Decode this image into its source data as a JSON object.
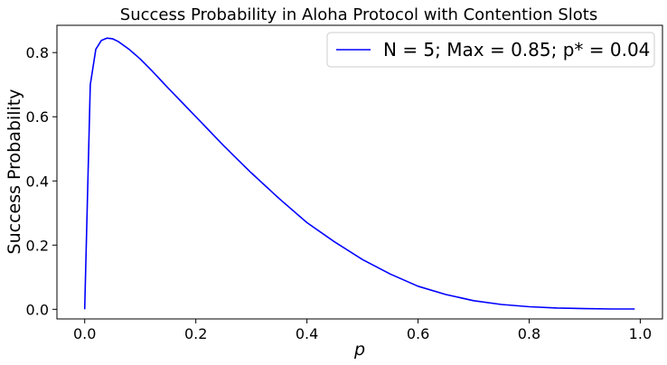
{
  "chart_data": {
    "type": "line",
    "title": "Success Probability in Aloha Protocol with Contention Slots",
    "xlabel": "p",
    "ylabel": "Success Probability",
    "xlim": [
      -0.05,
      1.04
    ],
    "ylim": [
      -0.03,
      0.885
    ],
    "xticks": [
      "0.0",
      "0.2",
      "0.4",
      "0.6",
      "0.8",
      "1.0"
    ],
    "yticks": [
      "0.0",
      "0.2",
      "0.4",
      "0.6",
      "0.8"
    ],
    "grid": false,
    "legend_position": "top-right",
    "series": [
      {
        "name": "N = 5; Max = 0.85; p* = 0.04",
        "color": "#0000ff",
        "x": [
          0.0,
          0.01,
          0.02,
          0.03,
          0.04,
          0.05,
          0.06,
          0.08,
          0.1,
          0.12,
          0.15,
          0.2,
          0.25,
          0.3,
          0.35,
          0.4,
          0.45,
          0.5,
          0.55,
          0.6,
          0.65,
          0.7,
          0.75,
          0.8,
          0.85,
          0.9,
          0.95,
          0.99
        ],
        "y": [
          0.0,
          0.7,
          0.81,
          0.838,
          0.845,
          0.843,
          0.835,
          0.81,
          0.78,
          0.745,
          0.69,
          0.6,
          0.51,
          0.425,
          0.345,
          0.27,
          0.21,
          0.155,
          0.11,
          0.072,
          0.046,
          0.027,
          0.015,
          0.008,
          0.004,
          0.002,
          0.001,
          0.001
        ]
      }
    ]
  }
}
